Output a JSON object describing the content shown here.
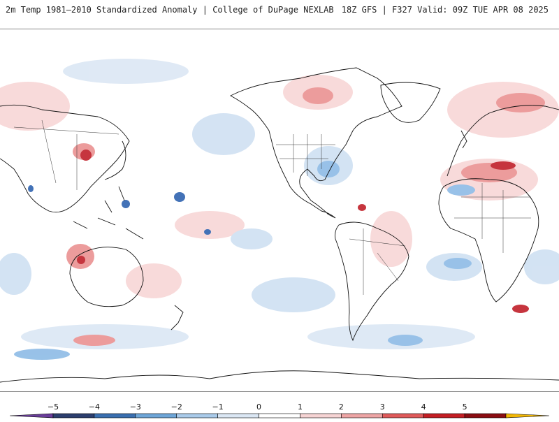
{
  "header": {
    "title": "2m Temp 1981–2010 Standardized Anomaly | College of DuPage NEXLAB",
    "run_info": "18Z GFS | F327 Valid: 09Z TUE APR 08 2025"
  },
  "colorbar": {
    "labels": [
      "−5",
      "−4",
      "−3",
      "−2",
      "−1",
      "0",
      "1",
      "2",
      "3",
      "4",
      "5"
    ],
    "colors": [
      "#6a3d9a",
      "#2c3e6e",
      "#3a6fb0",
      "#6ea6d8",
      "#aacbea",
      "#dbe7f4",
      "#ffffff",
      "#f6d4d4",
      "#eea5a5",
      "#e05a5a",
      "#c41e24",
      "#8b0d12",
      "#f2b705"
    ]
  },
  "colors": {
    "coastline": "#111111",
    "cold_light": "#cfe0f2",
    "cold_mid": "#8dbbe6",
    "cold_deep": "#2f63b0",
    "warm_light": "#f8d6d6",
    "warm_mid": "#ea9292",
    "warm_deep": "#c0202a"
  }
}
